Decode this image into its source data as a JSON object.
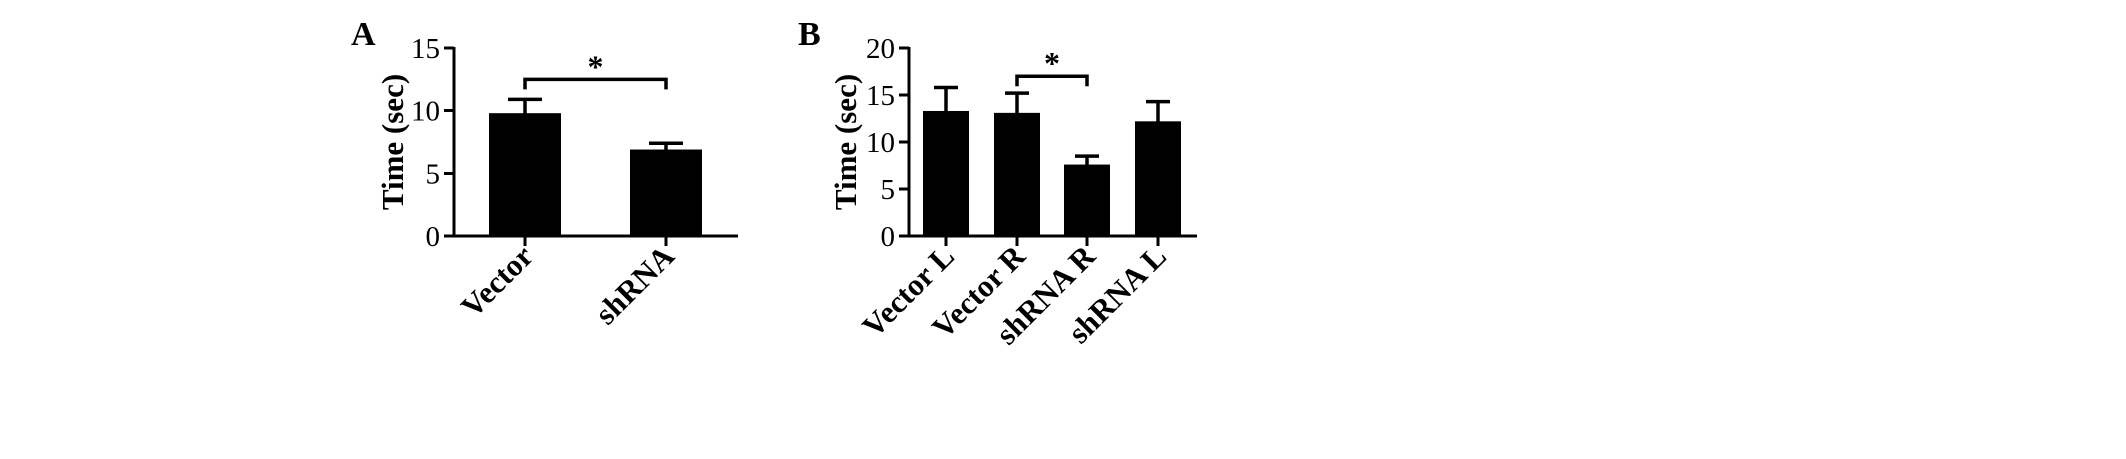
{
  "chart_data": [
    {
      "type": "bar",
      "panel_label": "A",
      "categories": [
        "Vector",
        "shRNA"
      ],
      "values": [
        9.8,
        6.9
      ],
      "errors": [
        1.1,
        0.5
      ],
      "ylabel": "Time (sec)",
      "xlabel": "",
      "ylim": [
        0,
        15
      ],
      "yticks": [
        "0",
        "5",
        "10",
        "15"
      ],
      "significance": [
        {
          "from": 0,
          "to": 1,
          "label": "*",
          "y": 12.5
        }
      ]
    },
    {
      "type": "bar",
      "panel_label": "B",
      "categories": [
        "Vector L",
        "Vector R",
        "shRNA R",
        "shRNA L"
      ],
      "values": [
        13.3,
        13.1,
        7.6,
        12.2
      ],
      "errors": [
        2.5,
        2.1,
        0.9,
        2.1
      ],
      "ylabel": "Time (sec)",
      "xlabel": "",
      "ylim": [
        0,
        20
      ],
      "yticks": [
        "0",
        "5",
        "10",
        "15",
        "20"
      ],
      "significance": [
        {
          "from": 1,
          "to": 2,
          "label": "*",
          "y": 17.0
        }
      ]
    }
  ]
}
